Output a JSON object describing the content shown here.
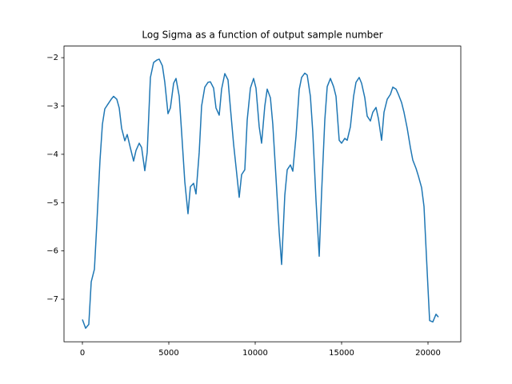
{
  "chart_data": {
    "type": "line",
    "title": "Log Sigma as a function of output sample number",
    "x": [
      0,
      185,
      370,
      510,
      695,
      833,
      1019,
      1157,
      1296,
      1481,
      1667,
      1806,
      1991,
      2130,
      2269,
      2454,
      2593,
      2778,
      2963,
      3102,
      3287,
      3426,
      3611,
      3750,
      3935,
      4120,
      4306,
      4444,
      4630,
      4769,
      4954,
      5093,
      5278,
      5417,
      5602,
      5741,
      5926,
      6111,
      6250,
      6435,
      6574,
      6759,
      6898,
      7083,
      7269,
      7407,
      7593,
      7731,
      7917,
      8056,
      8241,
      8426,
      8565,
      8750,
      8889,
      9074,
      9213,
      9398,
      9537,
      9722,
      9907,
      10046,
      10231,
      10370,
      10556,
      10694,
      10880,
      11019,
      11204,
      11389,
      11528,
      11713,
      11852,
      12037,
      12176,
      12361,
      12546,
      12685,
      12870,
      13009,
      13194,
      13333,
      13519,
      13704,
      13843,
      14028,
      14167,
      14352,
      14537,
      14676,
      14861,
      15000,
      15185,
      15324,
      15509,
      15694,
      15833,
      16019,
      16157,
      16343,
      16481,
      16667,
      16806,
      16991,
      17130,
      17315,
      17454,
      17639,
      17824,
      17963,
      18148,
      18287,
      18472,
      18611,
      18796,
      18981,
      19120,
      19306,
      19444,
      19630,
      19769,
      19954,
      20093,
      20278,
      20463,
      20602
    ],
    "series": [
      {
        "color": "#1f77b4",
        "values": [
          -7.42,
          -7.6,
          -7.52,
          -6.64,
          -6.38,
          -5.45,
          -4.12,
          -3.38,
          -3.06,
          -2.96,
          -2.86,
          -2.8,
          -2.86,
          -3.04,
          -3.46,
          -3.72,
          -3.59,
          -3.87,
          -4.14,
          -3.92,
          -3.77,
          -3.86,
          -4.34,
          -3.96,
          -2.41,
          -2.1,
          -2.05,
          -2.03,
          -2.17,
          -2.51,
          -3.16,
          -3.04,
          -2.53,
          -2.43,
          -2.8,
          -3.54,
          -4.57,
          -5.23,
          -4.67,
          -4.6,
          -4.82,
          -3.96,
          -3.0,
          -2.61,
          -2.51,
          -2.5,
          -2.63,
          -3.04,
          -3.19,
          -2.65,
          -2.33,
          -2.46,
          -3.04,
          -3.79,
          -4.26,
          -4.89,
          -4.42,
          -4.32,
          -3.29,
          -2.63,
          -2.43,
          -2.63,
          -3.43,
          -3.77,
          -3.0,
          -2.65,
          -2.83,
          -3.38,
          -4.49,
          -5.62,
          -6.28,
          -4.85,
          -4.32,
          -4.22,
          -4.35,
          -3.63,
          -2.66,
          -2.41,
          -2.32,
          -2.36,
          -2.8,
          -3.54,
          -4.95,
          -6.11,
          -4.79,
          -3.29,
          -2.6,
          -2.43,
          -2.6,
          -2.8,
          -3.71,
          -3.77,
          -3.67,
          -3.71,
          -3.43,
          -2.8,
          -2.51,
          -2.41,
          -2.53,
          -2.83,
          -3.21,
          -3.31,
          -3.13,
          -3.03,
          -3.26,
          -3.71,
          -3.13,
          -2.86,
          -2.76,
          -2.61,
          -2.65,
          -2.76,
          -2.93,
          -3.13,
          -3.46,
          -3.86,
          -4.12,
          -4.29,
          -4.45,
          -4.69,
          -5.08,
          -6.44,
          -7.44,
          -7.47,
          -7.31,
          -7.37
        ]
      }
    ],
    "xlim": [
      -1065,
      21898
    ],
    "xticks": [
      0,
      5000,
      10000,
      15000,
      20000
    ],
    "ylim": [
      -7.88,
      -1.76
    ],
    "yticks": [
      {
        "value": -7,
        "label": "−7"
      },
      {
        "value": -6,
        "label": "−6"
      },
      {
        "value": -5,
        "label": "−5"
      },
      {
        "value": -4,
        "label": "−4"
      },
      {
        "value": -3,
        "label": "−3"
      },
      {
        "value": -2,
        "label": "−2"
      }
    ],
    "grid": false
  }
}
